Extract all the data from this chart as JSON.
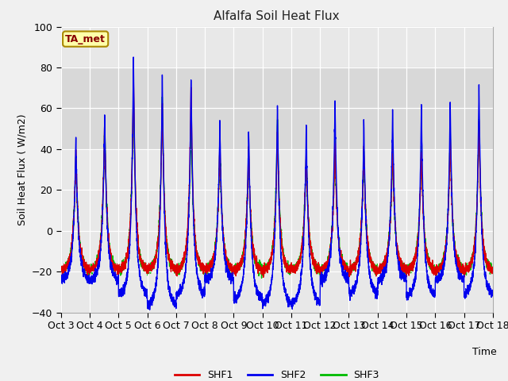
{
  "title": "Alfalfa Soil Heat Flux",
  "ylabel": "Soil Heat Flux ( W/m2)",
  "xlabel": "Time",
  "ylim": [
    -40,
    100
  ],
  "background_color": "#f0f0f0",
  "plot_bg_color": "#e8e8e8",
  "shf1_color": "#dd0000",
  "shf2_color": "#0000ee",
  "shf3_color": "#00bb00",
  "line_width": 1.0,
  "annotation_text": "TA_met",
  "annotation_bg": "#ffffaa",
  "annotation_border": "#aa8800",
  "annotation_text_color": "#880000",
  "tick_labels": [
    "Oct 3",
    "Oct 4",
    "Oct 5",
    "Oct 6",
    "Oct 7",
    "Oct 8",
    "Oct 9",
    "Oct 10",
    "Oct 11",
    "Oct 12",
    "Oct 13",
    "Oct 14",
    "Oct 15",
    "Oct 16",
    "Oct 17",
    "Oct 18"
  ],
  "shaded_band_low": 40,
  "shaded_band_high": 80,
  "shaded_band_color": "#d8d8d8",
  "day_peaks_shf1": [
    40,
    54,
    77,
    63,
    70,
    45,
    42,
    50,
    40,
    43,
    42,
    43,
    40,
    48,
    55
  ],
  "day_peaks_shf2": [
    45,
    57,
    85,
    77,
    75,
    54,
    51,
    63,
    51,
    65,
    53,
    60,
    63,
    63,
    73
  ],
  "day_peaks_shf3": [
    38,
    55,
    70,
    65,
    55,
    44,
    40,
    55,
    40,
    45,
    40,
    40,
    42,
    50,
    55
  ],
  "night_base_shf1": -20,
  "night_base_shf2": -28,
  "night_base_shf3": -20,
  "night_dip_shf2": [
    -25,
    -25,
    -32,
    -38,
    -32,
    -25,
    -35,
    -37,
    -37,
    -25,
    -32,
    -25,
    -33,
    -25,
    -32
  ]
}
